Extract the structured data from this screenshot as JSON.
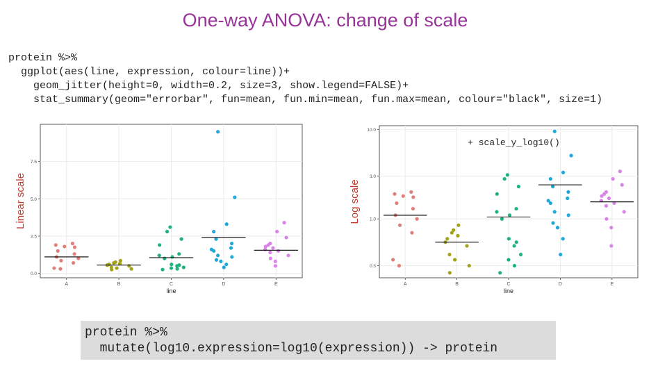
{
  "title": "One-way ANOVA: change of scale",
  "code_top": [
    "protein %>%",
    "  ggplot(aes(line, expression, colour=line))+",
    "    geom_jitter(height=0, width=0.2, size=3, show.legend=FALSE)+",
    "    stat_summary(geom=\"errorbar\", fun=mean, fun.min=mean, fun.max=mean, colour=\"black\", size=1)"
  ],
  "code_bottom": [
    "protein %>%",
    "  mutate(log10.expression=log10(expression)) -> protein"
  ],
  "colors": {
    "A": "#e0807a",
    "B": "#a3a318",
    "C": "#1fb37a",
    "D": "#1fa8d8",
    "E": "#d985e8",
    "mean_line": "#000000",
    "ylabel": "#c0392b"
  },
  "chart_data": [
    {
      "type": "scatter",
      "title": "",
      "annotation": "",
      "xlabel": "line",
      "ylabel": "Linear scale",
      "scale": "linear",
      "ylim": [
        -0.3,
        10.0
      ],
      "categories": [
        "A",
        "B",
        "C",
        "D",
        "E"
      ],
      "yticks": [
        0.0,
        2.5,
        5.0,
        7.5
      ],
      "ytick_labels": [
        "0.0",
        "2.5",
        "5.0",
        "7.5"
      ],
      "series": [
        {
          "name": "A",
          "values": [
            2.0,
            1.9,
            1.8,
            1.75,
            1.5,
            1.3,
            1.1,
            1.0,
            0.85,
            0.7,
            0.35,
            0.3
          ],
          "mean": 1.1
        },
        {
          "name": "B",
          "values": [
            0.85,
            0.75,
            0.7,
            0.65,
            0.6,
            0.55,
            0.5,
            0.4,
            0.35,
            0.3,
            0.25
          ],
          "mean": 0.55
        },
        {
          "name": "C",
          "values": [
            3.1,
            2.8,
            2.3,
            1.9,
            1.3,
            1.2,
            1.1,
            1.0,
            0.6,
            0.55,
            0.5,
            0.4,
            0.35,
            0.3,
            0.25
          ],
          "mean": 1.05
        },
        {
          "name": "D",
          "values": [
            9.5,
            5.1,
            3.3,
            2.8,
            2.3,
            2.0,
            1.7,
            1.6,
            1.5,
            1.2,
            1.1,
            0.9,
            0.8,
            0.6,
            0.4
          ],
          "mean": 2.4
        },
        {
          "name": "E",
          "values": [
            3.4,
            2.8,
            2.4,
            2.0,
            1.9,
            1.8,
            1.7,
            1.6,
            1.5,
            1.4,
            1.2,
            1.0,
            0.8,
            0.5
          ],
          "mean": 1.55
        }
      ]
    },
    {
      "type": "scatter",
      "title": "",
      "annotation": "+ scale_y_log10()",
      "xlabel": "line",
      "ylabel": "Log scale",
      "scale": "log10",
      "ylim": [
        0.22,
        11.0
      ],
      "categories": [
        "A",
        "B",
        "C",
        "D",
        "E"
      ],
      "yticks": [
        0.3,
        1.0,
        3.0,
        10.0
      ],
      "ytick_labels": [
        "0.3",
        "1.0",
        "3.0",
        "10.0"
      ],
      "series": [
        {
          "name": "A",
          "values": [
            2.0,
            1.9,
            1.8,
            1.75,
            1.5,
            1.3,
            1.1,
            1.0,
            0.85,
            0.7,
            0.35,
            0.3
          ],
          "mean": 1.1
        },
        {
          "name": "B",
          "values": [
            0.85,
            0.75,
            0.7,
            0.65,
            0.6,
            0.55,
            0.5,
            0.4,
            0.35,
            0.3,
            0.25
          ],
          "mean": 0.55
        },
        {
          "name": "C",
          "values": [
            3.1,
            2.8,
            2.3,
            1.9,
            1.3,
            1.2,
            1.1,
            1.0,
            0.6,
            0.55,
            0.5,
            0.4,
            0.35,
            0.3,
            0.25
          ],
          "mean": 1.05
        },
        {
          "name": "D",
          "values": [
            9.5,
            5.1,
            3.3,
            2.8,
            2.3,
            2.0,
            1.7,
            1.6,
            1.5,
            1.2,
            1.1,
            0.9,
            0.8,
            0.6,
            0.4
          ],
          "mean": 2.4
        },
        {
          "name": "E",
          "values": [
            3.4,
            2.8,
            2.4,
            2.0,
            1.9,
            1.8,
            1.7,
            1.6,
            1.5,
            1.4,
            1.2,
            1.0,
            0.8,
            0.5
          ],
          "mean": 1.55
        }
      ]
    }
  ]
}
